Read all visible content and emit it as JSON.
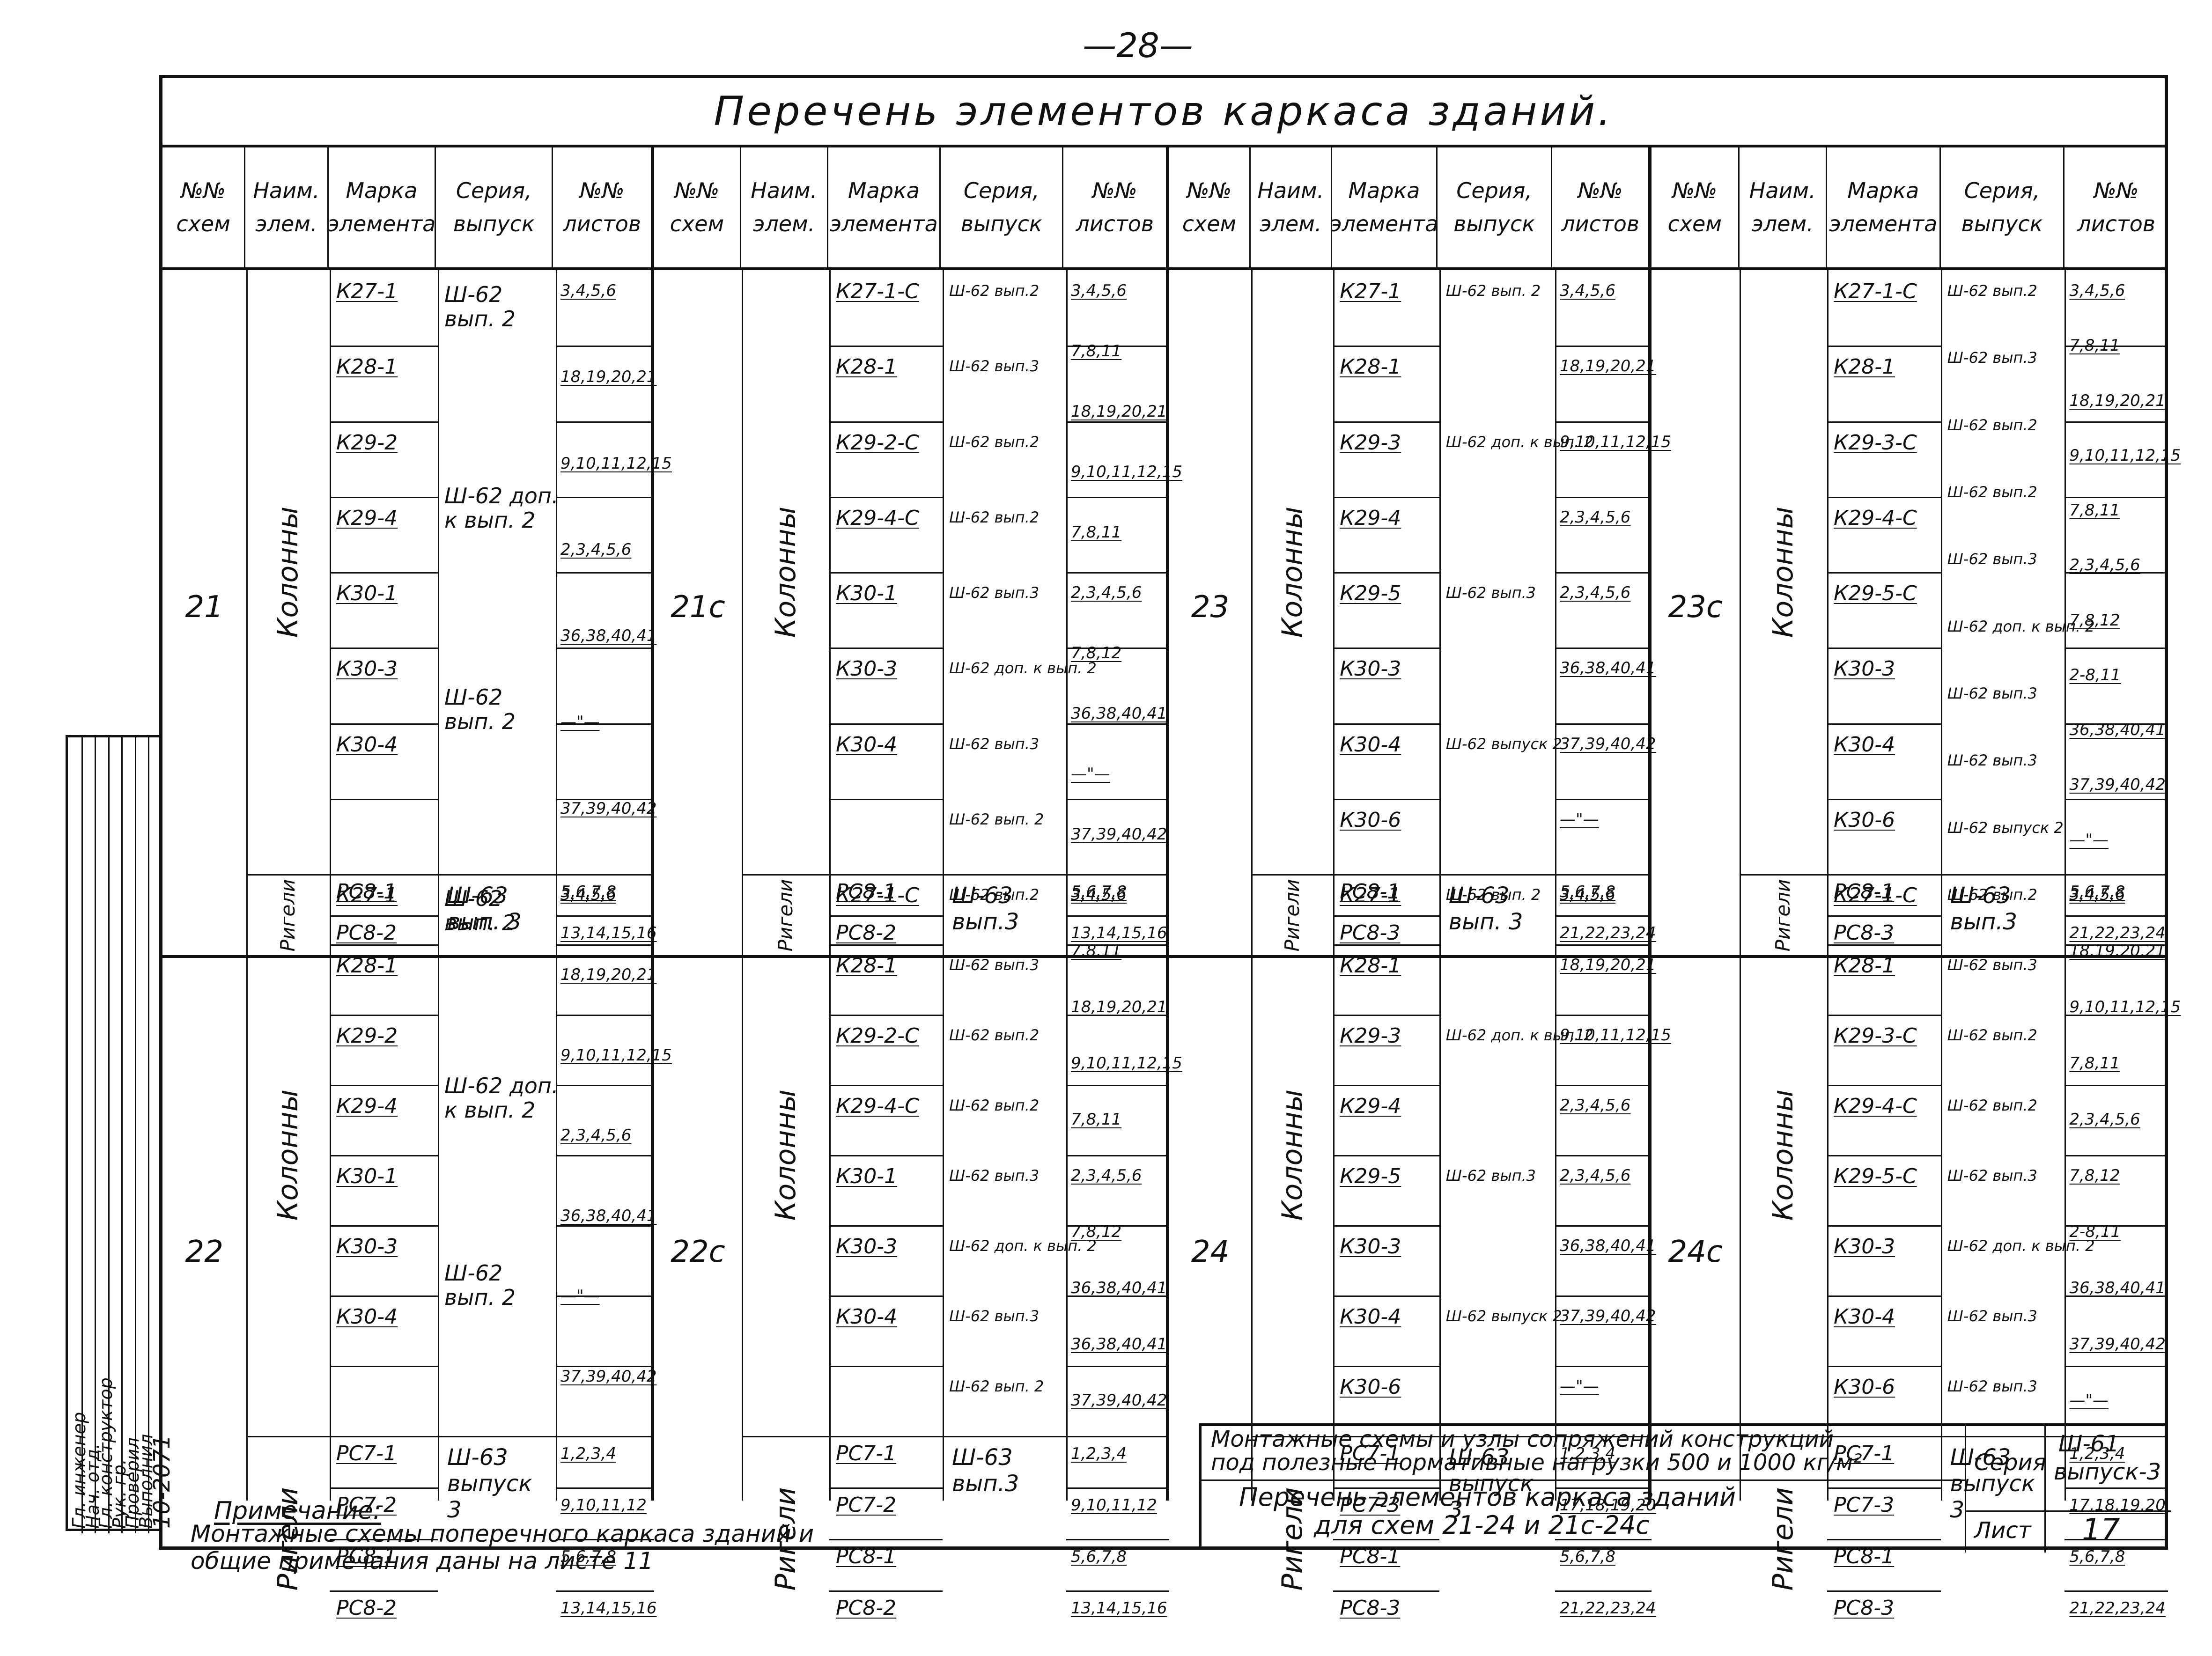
{
  "page_number": "—28—",
  "title": "Перечень элементов каркаса зданий.",
  "headers": {
    "scheme": [
      "№№",
      "схем"
    ],
    "name": [
      "Наим.",
      "элем."
    ],
    "mark": [
      "Марка",
      "элемента"
    ],
    "series": [
      "Серия,",
      "выпуск"
    ],
    "sheets": [
      "№№",
      "листов"
    ]
  },
  "groups": [
    {
      "blocks": [
        {
          "scheme": "21",
          "columns": {
            "label": "Колонны",
            "marks": [
              "К27-1",
              "К28-1",
              "К29-2",
              "К29-4",
              "К30-1",
              "К30-3",
              "К30-4"
            ],
            "series": [
              [
                "Ш-62",
                "вып. 2"
              ],
              [
                "Ш-62 доп.",
                "к вып. 2"
              ],
              [
                "Ш-62",
                "вып. 2"
              ]
            ],
            "sheets": [
              "3,4,5,6",
              "18,19,20,21",
              "9,10,11,12,15",
              "2,3,4,5,6",
              "36,38,40,41",
              "—\"—",
              "37,39,40,42"
            ]
          },
          "beams": {
            "label": "Ригели",
            "marks": [
              "РС8-1",
              "РС8-2"
            ],
            "series": [
              [
                "Ш-63",
                "вып. 3"
              ]
            ],
            "sheets": [
              "5,6,7,8",
              "13,14,15,16"
            ]
          }
        },
        {
          "scheme": "22",
          "columns": {
            "label": "Колонны",
            "marks": [
              "К27-1",
              "К28-1",
              "К29-2",
              "К29-4",
              "К30-1",
              "К30-3",
              "К30-4"
            ],
            "series": [
              [
                "Ш-62",
                "вып. 2"
              ],
              [
                "Ш-62 доп.",
                "к вып. 2"
              ],
              [
                "Ш-62",
                "вып. 2"
              ]
            ],
            "sheets": [
              "3,4,5,6",
              "18,19,20,21",
              "9,10,11,12,15",
              "2,3,4,5,6",
              "36,38,40,41",
              "—\"—",
              "37,39,40,42"
            ]
          },
          "beams": {
            "label": "Ригели",
            "marks": [
              "РС7-1",
              "РС7-2",
              "РС8-1",
              "РС8-2"
            ],
            "series": [
              [
                "Ш-63",
                "выпуск",
                "3"
              ]
            ],
            "sheets": [
              "1,2,3,4",
              "9,10,11,12",
              "5,6,7,8",
              "13,14,15,16"
            ]
          }
        }
      ]
    },
    {
      "blocks": [
        {
          "scheme": "21с",
          "columns": {
            "label": "Колонны",
            "marks": [
              "К27-1-С",
              "К28-1",
              "К29-2-С",
              "К29-4-С",
              "К30-1",
              "К30-3",
              "К30-4"
            ],
            "series": [
              "Ш-62 вып.2",
              "Ш-62 вып.3",
              "Ш-62 вып.2",
              "Ш-62 вып.2",
              "Ш-62 вып.3",
              "Ш-62 доп. к вып. 2",
              "Ш-62 вып.3",
              "Ш-62 вып. 2"
            ],
            "sheets": [
              "3,4,5,6",
              "7,8,11",
              "18,19,20,21",
              "9,10,11,12,15",
              "7,8,11",
              "2,3,4,5,6",
              "7,8,12",
              "36,38,40,41",
              "—\"—",
              "37,39,40,42"
            ]
          },
          "beams": {
            "label": "Ригели",
            "marks": [
              "РС8-1",
              "РС8-2"
            ],
            "series": [
              [
                "Ш-63",
                "вып.3"
              ]
            ],
            "sheets": [
              "5,6,7,8",
              "13,14,15,16"
            ]
          }
        },
        {
          "scheme": "22с",
          "columns": {
            "label": "Колонны",
            "marks": [
              "К27-1-С",
              "К28-1",
              "К29-2-С",
              "К29-4-С",
              "К30-1",
              "К30-3",
              "К30-4"
            ],
            "series": [
              "Ш-62 вып.2",
              "Ш-62 вып.3",
              "Ш-62 вып.2",
              "Ш-62 вып.2",
              "Ш-62 вып.3",
              "Ш-62 доп. к вып. 2",
              "Ш-62 вып.3",
              "Ш-62 вып. 2"
            ],
            "sheets": [
              "3,4,5,6",
              "7,8,11",
              "18,19,20,21",
              "9,10,11,12,15",
              "7,8,11",
              "2,3,4,5,6",
              "7,8,12",
              "36,38,40,41",
              "36,38,40,41",
              "37,39,40,42"
            ]
          },
          "beams": {
            "label": "Ригели",
            "marks": [
              "РС7-1",
              "РС7-2",
              "РС8-1",
              "РС8-2"
            ],
            "series": [
              [
                "Ш-63",
                "вып.3"
              ]
            ],
            "sheets": [
              "1,2,3,4",
              "9,10,11,12",
              "5,6,7,8",
              "13,14,15,16"
            ]
          }
        }
      ]
    },
    {
      "blocks": [
        {
          "scheme": "23",
          "columns": {
            "label": "Колонны",
            "marks": [
              "К27-1",
              "К28-1",
              "К29-3",
              "К29-4",
              "К29-5",
              "К30-3",
              "К30-4",
              "К30-6"
            ],
            "series": [
              "Ш-62 вып. 2",
              "Ш-62 доп. к вып. 2",
              "Ш-62 вып.3",
              "Ш-62 выпуск 2"
            ],
            "sheets": [
              "3,4,5,6",
              "18,19,20,21",
              "9,10,11,12,15",
              "2,3,4,5,6",
              "2,3,4,5,6",
              "36,38,40,41",
              "37,39,40,42",
              "—\"—"
            ]
          },
          "beams": {
            "label": "Ригели",
            "marks": [
              "РС8-1",
              "РС8-3"
            ],
            "series": [
              [
                "Ш-63",
                "вып. 3"
              ]
            ],
            "sheets": [
              "5,6,7,8",
              "21,22,23,24"
            ]
          }
        },
        {
          "scheme": "24",
          "columns": {
            "label": "Колонны",
            "marks": [
              "К27-1",
              "К28-1",
              "К29-3",
              "К29-4",
              "К29-5",
              "К30-3",
              "К30-4",
              "К30-6"
            ],
            "series": [
              "Ш-62 вып. 2",
              "Ш-62 доп. к вып. 2",
              "Ш-62 вып.3",
              "Ш-62 выпуск 2"
            ],
            "sheets": [
              "3,4,5,6",
              "18,19,20,21",
              "9,10,11,12,15",
              "2,3,4,5,6",
              "2,3,4,5,6",
              "36,38,40,41",
              "37,39,40,42",
              "—\"—"
            ]
          },
          "beams": {
            "label": "Ригели",
            "marks": [
              "РС7-1",
              "РС7-3",
              "РС8-1",
              "РС8-3"
            ],
            "series": [
              [
                "Ш-63",
                "выпуск",
                "3"
              ]
            ],
            "sheets": [
              "1,2,3,4",
              "17,18,19,20",
              "5,6,7,8",
              "21,22,23,24"
            ]
          }
        }
      ]
    },
    {
      "blocks": [
        {
          "scheme": "23с",
          "columns": {
            "label": "Колонны",
            "marks": [
              "К27-1-С",
              "К28-1",
              "К29-3-С",
              "К29-4-С",
              "К29-5-С",
              "К30-3",
              "К30-4",
              "К30-6"
            ],
            "series": [
              "Ш-62 вып.2",
              "Ш-62 вып.3",
              "Ш-62 вып.2",
              "Ш-62 вып.2",
              "Ш-62 вып.3",
              "Ш-62 доп. к вып. 2",
              "Ш-62 вып.3",
              "Ш-62 вып.3",
              "Ш-62 выпуск 2"
            ],
            "sheets": [
              "3,4,5,6",
              "7,8,11",
              "18,19,20,21",
              "9,10,11,12,15",
              "7,8,11",
              "2,3,4,5,6",
              "7,8,12",
              "2-8,11",
              "36,38,40,41",
              "37,39,40,42",
              "—\"—"
            ]
          },
          "beams": {
            "label": "Ригели",
            "marks": [
              "РС8-1",
              "РС8-3"
            ],
            "series": [
              [
                "Ш-63",
                "вып.3"
              ]
            ],
            "sheets": [
              "5,6,7,8",
              "21,22,23,24"
            ]
          }
        },
        {
          "scheme": "24с",
          "columns": {
            "label": "Колонны",
            "marks": [
              "К27-1-С",
              "К28-1",
              "К29-3-С",
              "К29-4-С",
              "К29-5-С",
              "К30-3",
              "К30-4",
              "К30-6"
            ],
            "series": [
              "Ш-62 вып.2",
              "Ш-62 вып.3",
              "Ш-62 вып.2",
              "Ш-62 вып.2",
              "Ш-62 вып.3",
              "Ш-62 доп. к вып. 2",
              "Ш-62 вып.3",
              "Ш-62 вып.3"
            ],
            "sheets": [
              "3,4,5,6",
              "18,19,20,21",
              "9,10,11,12,15",
              "7,8,11",
              "2,3,4,5,6",
              "7,8,12",
              "2-8,11",
              "36,38,40,41",
              "37,39,40,42",
              "—\"—"
            ]
          },
          "beams": {
            "label": "Ригели",
            "marks": [
              "РС7-1",
              "РС7-3",
              "РС8-1",
              "РС8-3"
            ],
            "series": [
              [
                "Ш-63",
                "выпуск",
                "3"
              ]
            ],
            "sheets": [
              "1,2,3,4",
              "17,18,19,20",
              "5,6,7,8",
              "21,22,23,24"
            ]
          }
        }
      ]
    }
  ],
  "notes": {
    "heading": "Примечание:",
    "lines": [
      "Монтажные схемы поперечного каркаса зданий и",
      "общие примечания даны на листе 11"
    ]
  },
  "title_block": {
    "line1": "Монтажные схемы и узлы сопряжений конструкций",
    "line2": "под полезные нормативные нагрузки 500 и 1000 кг/м²",
    "line3": "Перечень элементов каркаса зданий",
    "line4": "для схем 21-24 и 21с-24с",
    "series_label": "Серия",
    "series_value": [
      "Ш-61",
      "выпуск-3"
    ],
    "sheet_label": "Лист",
    "sheet_number": "17"
  },
  "stamp": {
    "code": "10-2071",
    "rows": [
      "Гл. инженер",
      "Нач. отд.",
      "Гл. конструктор",
      "Рук. гр.",
      "Проверил",
      "Выполнил"
    ]
  }
}
